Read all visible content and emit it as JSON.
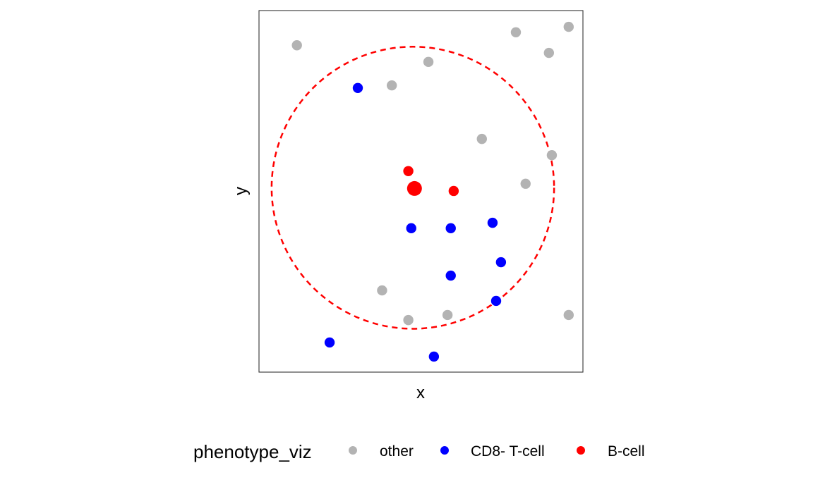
{
  "chart_data": {
    "type": "scatter",
    "title": "",
    "xlabel": "x",
    "ylabel": "y",
    "xlim": [
      0,
      100
    ],
    "ylim": [
      0,
      100
    ],
    "grid": false,
    "axis_ticks_shown": false,
    "legend": {
      "title": "phenotype_viz",
      "position": "bottom",
      "entries": [
        {
          "label": "other",
          "color": "#b3b3b3"
        },
        {
          "label": "CD8- T-cell",
          "color": "#0000ff"
        },
        {
          "label": "B-cell",
          "color": "#ff0000"
        }
      ]
    },
    "series": [
      {
        "name": "other",
        "color": "#b3b3b3",
        "points": [
          {
            "x": 11.7,
            "y": 90.4
          },
          {
            "x": 79.3,
            "y": 94.0
          },
          {
            "x": 95.6,
            "y": 95.5
          },
          {
            "x": 89.5,
            "y": 88.3
          },
          {
            "x": 52.3,
            "y": 85.8
          },
          {
            "x": 41.0,
            "y": 79.3
          },
          {
            "x": 68.8,
            "y": 64.5
          },
          {
            "x": 90.4,
            "y": 60.0
          },
          {
            "x": 82.3,
            "y": 52.1
          },
          {
            "x": 38.0,
            "y": 22.6
          },
          {
            "x": 46.1,
            "y": 14.4
          },
          {
            "x": 58.2,
            "y": 15.8
          },
          {
            "x": 95.6,
            "y": 15.8
          }
        ]
      },
      {
        "name": "CD8- T-cell",
        "color": "#0000ff",
        "points": [
          {
            "x": 30.5,
            "y": 78.6
          },
          {
            "x": 47.0,
            "y": 39.8
          },
          {
            "x": 59.2,
            "y": 39.8
          },
          {
            "x": 72.1,
            "y": 41.3
          },
          {
            "x": 74.7,
            "y": 30.4
          },
          {
            "x": 59.2,
            "y": 26.7
          },
          {
            "x": 73.2,
            "y": 19.7
          },
          {
            "x": 21.8,
            "y": 8.2
          },
          {
            "x": 54.0,
            "y": 4.3
          }
        ]
      },
      {
        "name": "B-cell",
        "color": "#ff0000",
        "points": [
          {
            "x": 46.1,
            "y": 55.6
          },
          {
            "x": 60.1,
            "y": 50.1
          }
        ]
      }
    ],
    "highlight": {
      "name": "B-cell",
      "color": "#ff0000",
      "x": 48.0,
      "y": 50.8,
      "large": true
    },
    "radius_circle": {
      "center_x": 47.5,
      "center_y": 51.0,
      "radius_x": 43.6,
      "radius_y": 39.0,
      "color": "#ff0000",
      "style": "dashed"
    }
  }
}
